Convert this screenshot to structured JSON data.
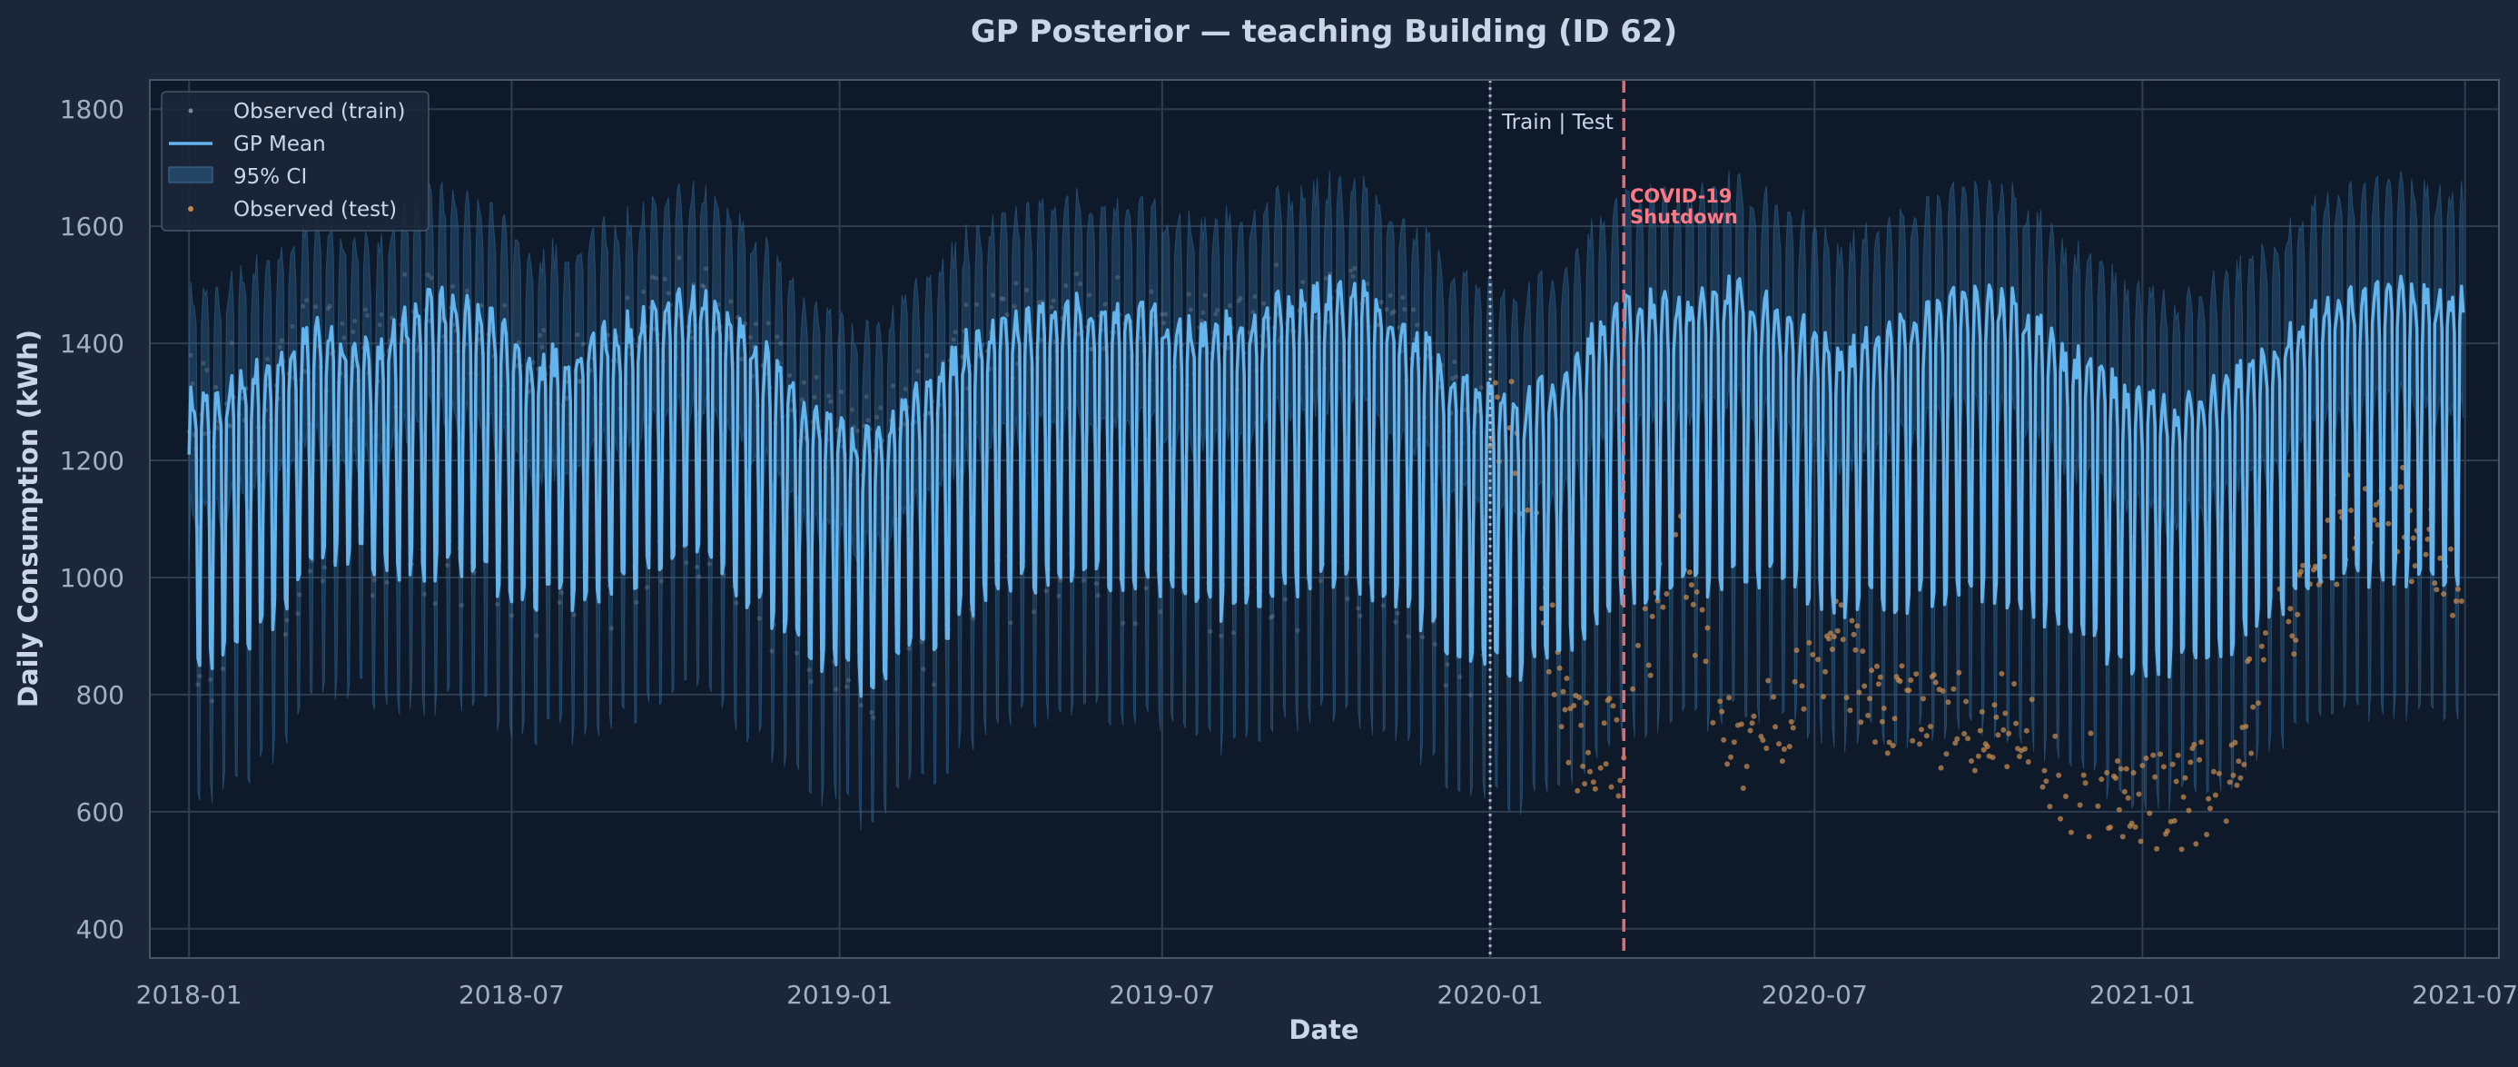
{
  "colors": {
    "figure_bg": "#1b2738",
    "axes_bg": "#0e1a2a",
    "grid": "#2e3e52",
    "spine": "#465568",
    "text": "#c8d6e8",
    "tick_text": "#9fb0c4",
    "gp_mean": "#63b3ed",
    "ci_fill": "#2d5f8a",
    "train_points": "#7a8a9c",
    "test_points": "#c08850",
    "train_test_line": "#a9b7c8",
    "covid_line": "#e06c75",
    "covid_text": "#ff7a85"
  },
  "chart_data": {
    "type": "line",
    "title": "GP Posterior — teaching Building (ID 62)",
    "xlabel": "Date",
    "ylabel": "Daily Consumption (kWh)",
    "xlim": [
      "2017-12-10",
      "2021-07-20"
    ],
    "ylim": [
      350,
      1850
    ],
    "x_ticks": [
      "2018-01",
      "2018-07",
      "2019-01",
      "2019-07",
      "2020-01",
      "2020-07",
      "2021-01",
      "2021-07"
    ],
    "y_ticks": [
      400,
      600,
      800,
      1000,
      1200,
      1400,
      1600,
      1800
    ],
    "grid": true,
    "legend_position": "top-left",
    "legend": [
      "Observed (train)",
      "GP Mean",
      "95% CI",
      "Observed (test)"
    ],
    "train_test_split": "2020-01-01",
    "covid_shutdown": "2020-03-16",
    "annotations": {
      "split_label": "Train | Test",
      "covid_label_line1": "COVID-19",
      "covid_label_line2": "Shutdown"
    },
    "series": [
      {
        "name": "GP Mean",
        "weekly_pattern": "weekday high / weekend low",
        "monthly_weekday_peak": [
          [
            "2018-01",
            1300
          ],
          [
            "2018-02",
            1360
          ],
          [
            "2018-03",
            1420
          ],
          [
            "2018-04",
            1380
          ],
          [
            "2018-05",
            1480
          ],
          [
            "2018-06",
            1450
          ],
          [
            "2018-07",
            1360
          ],
          [
            "2018-08",
            1400
          ],
          [
            "2018-09",
            1440
          ],
          [
            "2018-10",
            1480
          ],
          [
            "2018-11",
            1400
          ],
          [
            "2018-12",
            1280
          ],
          [
            "2019-01",
            1230
          ],
          [
            "2019-02",
            1320
          ],
          [
            "2019-03",
            1400
          ],
          [
            "2019-04",
            1440
          ],
          [
            "2019-05",
            1460
          ],
          [
            "2019-06",
            1460
          ],
          [
            "2019-07",
            1420
          ],
          [
            "2019-08",
            1430
          ],
          [
            "2019-09",
            1480
          ],
          [
            "2019-10",
            1490
          ],
          [
            "2019-11",
            1430
          ],
          [
            "2019-12",
            1330
          ],
          [
            "2020-01",
            1280
          ],
          [
            "2020-02",
            1360
          ],
          [
            "2020-03",
            1470
          ],
          [
            "2020-04",
            1460
          ],
          [
            "2020-05",
            1500
          ],
          [
            "2020-06",
            1440
          ],
          [
            "2020-07",
            1380
          ],
          [
            "2020-08",
            1420
          ],
          [
            "2020-09",
            1470
          ],
          [
            "2020-10",
            1480
          ],
          [
            "2020-11",
            1390
          ],
          [
            "2020-12",
            1330
          ],
          [
            "2021-01",
            1280
          ],
          [
            "2021-02",
            1330
          ],
          [
            "2021-03",
            1390
          ],
          [
            "2021-04",
            1460
          ],
          [
            "2021-05",
            1500
          ],
          [
            "2021-06",
            1470
          ]
        ],
        "monthly_weekend_low": [
          [
            "2018-01",
            860
          ],
          [
            "2018-02",
            920
          ],
          [
            "2018-03",
            1050
          ],
          [
            "2018-04",
            1030
          ],
          [
            "2018-05",
            1020
          ],
          [
            "2018-06",
            1000
          ],
          [
            "2018-07",
            960
          ],
          [
            "2018-08",
            980
          ],
          [
            "2018-09",
            1020
          ],
          [
            "2018-10",
            1030
          ],
          [
            "2018-11",
            960
          ],
          [
            "2018-12",
            880
          ],
          [
            "2019-01",
            820
          ],
          [
            "2019-02",
            880
          ],
          [
            "2019-03",
            960
          ],
          [
            "2019-04",
            1000
          ],
          [
            "2019-05",
            1010
          ],
          [
            "2019-06",
            1000
          ],
          [
            "2019-07",
            960
          ],
          [
            "2019-08",
            950
          ],
          [
            "2019-09",
            990
          ],
          [
            "2019-10",
            1000
          ],
          [
            "2019-11",
            950
          ],
          [
            "2019-12",
            880
          ],
          [
            "2020-01",
            830
          ],
          [
            "2020-02",
            900
          ],
          [
            "2020-03",
            980
          ],
          [
            "2020-04",
            990
          ],
          [
            "2020-05",
            1000
          ],
          [
            "2020-06",
            1000
          ],
          [
            "2020-07",
            960
          ],
          [
            "2020-08",
            960
          ],
          [
            "2020-09",
            980
          ],
          [
            "2020-10",
            980
          ],
          [
            "2020-11",
            930
          ],
          [
            "2020-12",
            870
          ],
          [
            "2021-01",
            850
          ],
          [
            "2021-02",
            880
          ],
          [
            "2021-03",
            940
          ],
          [
            "2021-04",
            990
          ],
          [
            "2021-05",
            1010
          ],
          [
            "2021-06",
            1000
          ]
        ]
      },
      {
        "name": "95% CI",
        "half_width_kwh_weekday": 180,
        "half_width_kwh_weekend": 230
      },
      {
        "name": "Observed (train)",
        "note_range": [
          "2018-01-01",
          "2019-12-31"
        ],
        "follows": "GP Mean"
      },
      {
        "name": "Observed (test)",
        "range": [
          "2020-01-01",
          "2021-06-30"
        ],
        "monthly_level": [
          [
            "2020-01",
            1250
          ],
          [
            "2020-02",
            720
          ],
          [
            "2020-03",
            700
          ],
          [
            "2020-04",
            1080
          ],
          [
            "2020-05",
            700
          ],
          [
            "2020-06",
            780
          ],
          [
            "2020-07",
            880
          ],
          [
            "2020-08",
            760
          ],
          [
            "2020-09",
            760
          ],
          [
            "2020-10",
            760
          ],
          [
            "2020-11",
            650
          ],
          [
            "2020-12",
            640
          ],
          [
            "2021-01",
            620
          ],
          [
            "2021-02",
            640
          ],
          [
            "2021-03",
            900
          ],
          [
            "2021-04",
            1050
          ],
          [
            "2021-05",
            1150
          ],
          [
            "2021-06",
            1020
          ]
        ],
        "spread_kwh": 90
      }
    ]
  }
}
